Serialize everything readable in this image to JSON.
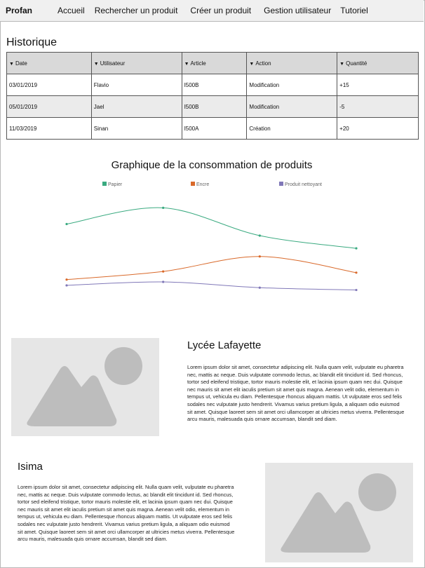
{
  "nav": {
    "brand": "Profan",
    "links": [
      "Accueil",
      "Rechercher un produit",
      "Créer un produit",
      "Gestion utilisateur",
      "Tutoriel"
    ]
  },
  "history": {
    "title": "Historique",
    "columns": [
      "Date",
      "Utilisateur",
      "Article",
      "Action",
      "Quantité"
    ],
    "rows": [
      [
        "03/01/2019",
        "Flavio",
        "I500B",
        "Modification",
        "+15"
      ],
      [
        "05/01/2019",
        "Jael",
        "I500B",
        "Modification",
        "-5"
      ],
      [
        "11/03/2019",
        "Sinan",
        "I500A",
        "Création",
        "+20"
      ]
    ]
  },
  "chart_data": {
    "type": "line",
    "title": "Graphique de la consommation de produits",
    "xlabel": "",
    "ylabel": "",
    "grid": false,
    "legend": "top",
    "x": [
      1,
      2,
      3,
      4
    ],
    "ylim": [
      0,
      100
    ],
    "series": [
      {
        "name": "Papier",
        "color": "#3aaa80",
        "values": [
          70,
          84,
          60,
          49
        ]
      },
      {
        "name": "Encre",
        "color": "#d9692a",
        "values": [
          22,
          29,
          42,
          28
        ]
      },
      {
        "name": "Produit nettoyant",
        "color": "#8078b8",
        "values": [
          17,
          20,
          15,
          13
        ]
      }
    ]
  },
  "cards": [
    {
      "title": "Lycée Lafayette",
      "text": "Lorem ipsum dolor sit amet, consectetur adipiscing elit. Nulla quam velit, vulputate eu pharetra nec, mattis ac neque. Duis vulputate commodo lectus, ac blandit elit tincidunt id. Sed rhoncus, tortor sed eleifend tristique, tortor mauris molestie elit, et lacinia ipsum quam nec dui. Quisque nec mauris sit amet elit iaculis pretium sit amet quis magna. Aenean velit odio, elementum in tempus ut, vehicula eu diam. Pellentesque rhoncus aliquam mattis. Ut vulputate eros sed felis sodales nec vulputate justo hendrerit. Vivamus varius pretium ligula, a aliquam odio euismod sit amet. Quisque laoreet sem sit amet orci ullamcorper at ultricies metus viverra. Pellentesque arcu mauris, malesuada quis ornare accumsan, blandit sed diam."
    },
    {
      "title": "Isima",
      "text": "Lorem ipsum dolor sit amet, consectetur adipiscing elit. Nulla quam velit, vulputate eu pharetra nec, mattis ac neque. Duis vulputate commodo lectus, ac blandit elit tincidunt id. Sed rhoncus, tortor sed eleifend tristique, tortor mauris molestie elit, et lacinia ipsum quam nec dui. Quisque nec mauris sit amet elit iaculis pretium sit amet quis magna. Aenean velit odio, elementum in tempus ut, vehicula eu diam. Pellentesque rhoncus aliquam mattis. Ut vulputate eros sed felis sodales nec vulputate justo hendrerit. Vivamus varius pretium ligula, a aliquam odio euismod sit amet. Quisque laoreet sem sit amet orci ullamcorper at ultricies metus viverra. Pellentesque arcu mauris, malesuada quis ornare accumsan, blandit sed diam."
    }
  ],
  "icons": {
    "sort": "triangle-down-icon",
    "placeholder": "image-placeholder-icon"
  }
}
